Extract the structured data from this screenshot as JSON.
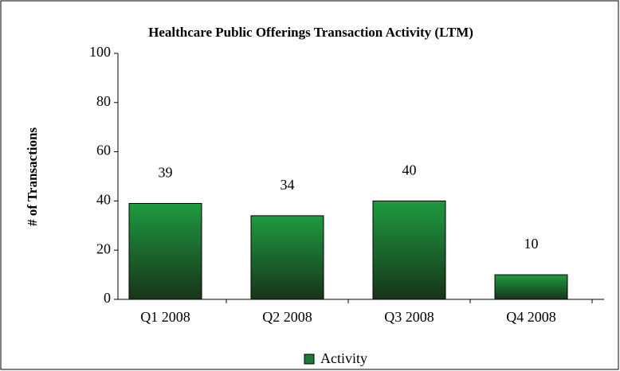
{
  "chart_data": {
    "type": "bar",
    "title": "Healthcare Public Offerings Transaction Activity  (LTM)",
    "y_label": "# of Transactions",
    "categories": [
      "Q1 2008",
      "Q2 2008",
      "Q3 2008",
      "Q4 2008"
    ],
    "series": [
      {
        "name": "Activity",
        "color": "#1e7a34",
        "values": [
          39,
          34,
          40,
          10
        ]
      }
    ],
    "ylim": [
      0,
      100
    ],
    "yticks": [
      0,
      20,
      40,
      60,
      80,
      100
    ],
    "legend": "bottom"
  }
}
